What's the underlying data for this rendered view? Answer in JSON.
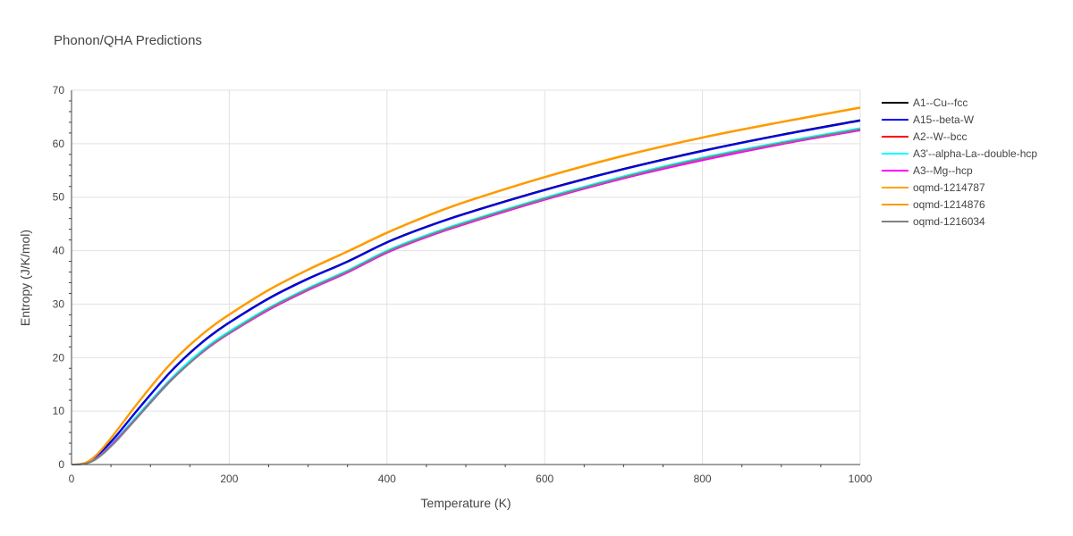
{
  "chart_data": {
    "type": "line",
    "title": "Phonon/QHA Predictions",
    "xlabel": "Temperature (K)",
    "ylabel": "Entropy (J/K/mol)",
    "xlim": [
      0,
      1000
    ],
    "ylim": [
      0,
      70
    ],
    "xticks": [
      0,
      200,
      400,
      600,
      800,
      1000
    ],
    "yticks": [
      0,
      10,
      20,
      30,
      40,
      50,
      60,
      70
    ],
    "grid": true,
    "legend_position": "top-right outside",
    "x": [
      0,
      10,
      20,
      30,
      40,
      50,
      60,
      80,
      100,
      125,
      150,
      175,
      200,
      250,
      300,
      350,
      400,
      450,
      500,
      600,
      700,
      800,
      900,
      1000
    ],
    "series": [
      {
        "name": "A1--Cu--fcc",
        "color": "#000000",
        "values": [
          0,
          0.05,
          0.4,
          1.3,
          2.7,
          4.3,
          6.0,
          9.6,
          13.1,
          17.3,
          20.9,
          24.0,
          26.6,
          31.1,
          34.8,
          38.0,
          41.6,
          44.5,
          47.0,
          51.4,
          55.3,
          58.7,
          61.7,
          64.4
        ]
      },
      {
        "name": "A15--beta-W",
        "color": "#0000ff",
        "values": [
          0,
          0.05,
          0.38,
          1.25,
          2.6,
          4.2,
          5.9,
          9.5,
          13.0,
          17.2,
          20.8,
          23.9,
          26.5,
          31.0,
          34.7,
          37.9,
          41.5,
          44.4,
          46.9,
          51.3,
          55.2,
          58.6,
          61.6,
          64.3
        ]
      },
      {
        "name": "A2--W--bcc",
        "color": "#ff0000",
        "values": [
          0,
          0.04,
          0.3,
          1.0,
          2.2,
          3.7,
          5.2,
          8.5,
          11.8,
          15.8,
          19.3,
          22.3,
          24.8,
          29.2,
          32.9,
          36.2,
          39.9,
          42.8,
          45.3,
          49.8,
          53.8,
          57.3,
          60.2,
          62.8
        ]
      },
      {
        "name": "A3'--alpha-La--double-hcp",
        "color": "#00ffff",
        "values": [
          0,
          0.04,
          0.3,
          1.0,
          2.2,
          3.7,
          5.3,
          8.6,
          11.9,
          15.9,
          19.4,
          22.4,
          24.9,
          29.3,
          33.0,
          36.3,
          40.0,
          42.9,
          45.4,
          49.9,
          53.9,
          57.4,
          60.3,
          62.9
        ]
      },
      {
        "name": "A3--Mg--hcp",
        "color": "#ff00ff",
        "values": [
          0,
          0.04,
          0.28,
          0.95,
          2.1,
          3.55,
          5.1,
          8.3,
          11.6,
          15.6,
          19.0,
          22.0,
          24.5,
          28.9,
          32.6,
          35.9,
          39.6,
          42.5,
          45.0,
          49.5,
          53.5,
          56.9,
          59.9,
          62.5
        ]
      },
      {
        "name": "oqmd-1214787",
        "color": "#ffa500",
        "values": [
          0,
          0.06,
          0.5,
          1.6,
          3.2,
          5.0,
          6.9,
          10.8,
          14.5,
          18.8,
          22.4,
          25.5,
          28.1,
          32.7,
          36.5,
          39.9,
          43.4,
          46.5,
          49.2,
          53.8,
          57.8,
          61.2,
          64.1,
          66.8
        ]
      },
      {
        "name": "oqmd-1214876",
        "color": "#ff9900",
        "values": [
          0,
          0.06,
          0.48,
          1.55,
          3.1,
          4.9,
          6.8,
          10.7,
          14.4,
          18.7,
          22.3,
          25.4,
          28.0,
          32.6,
          36.4,
          39.8,
          43.3,
          46.4,
          49.1,
          53.7,
          57.7,
          61.1,
          64.0,
          66.7
        ]
      },
      {
        "name": "oqmd-1216034",
        "color": "#808080",
        "values": [
          0,
          0.03,
          0.25,
          0.9,
          2.0,
          3.4,
          4.9,
          8.2,
          11.5,
          15.5,
          19.0,
          22.1,
          24.6,
          29.1,
          32.8,
          36.1,
          39.8,
          42.7,
          45.2,
          49.7,
          53.7,
          57.2,
          60.1,
          62.7
        ]
      }
    ]
  }
}
